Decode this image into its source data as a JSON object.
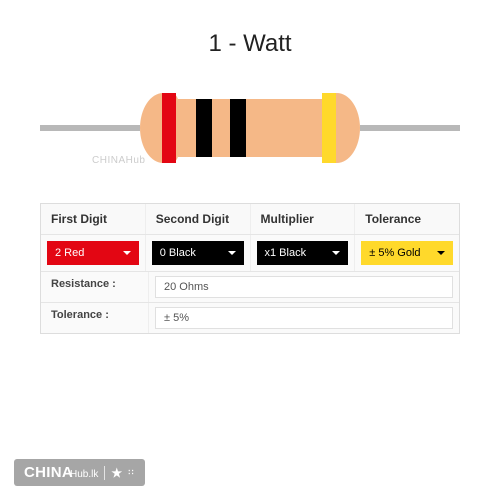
{
  "title": "1 - Watt",
  "resistor": {
    "body_color": "#f5b887",
    "lead_color": "#b8b8b8",
    "bands": [
      {
        "color": "#e30613",
        "name": "red"
      },
      {
        "color": "#000000",
        "name": "black"
      },
      {
        "color": "#000000",
        "name": "black"
      },
      {
        "color": "#ffd92b",
        "name": "gold"
      }
    ]
  },
  "headers": {
    "first": "First Digit",
    "second": "Second Digit",
    "mult": "Multiplier",
    "tol": "Tolerance"
  },
  "selects": {
    "first": {
      "label": "2 Red",
      "bg": "#e30613",
      "fg": "#ffffff"
    },
    "second": {
      "label": "0 Black",
      "bg": "#000000",
      "fg": "#ffffff"
    },
    "mult": {
      "label": "x1 Black",
      "bg": "#000000",
      "fg": "#ffffff"
    },
    "tol": {
      "label": "± 5% Gold",
      "bg": "#ffd92b",
      "fg": "#000000"
    }
  },
  "results": {
    "resistance_label": "Resistance :",
    "resistance_value": "20 Ohms",
    "tolerance_label": "Tolerance :",
    "tolerance_value": "± 5%"
  },
  "watermark_faint": "CHINAHub",
  "watermark": {
    "brand_main": "CHINA",
    "brand_sub": "Hub.lk",
    "bg": "#a6a6a6",
    "fg": "#ffffff"
  }
}
